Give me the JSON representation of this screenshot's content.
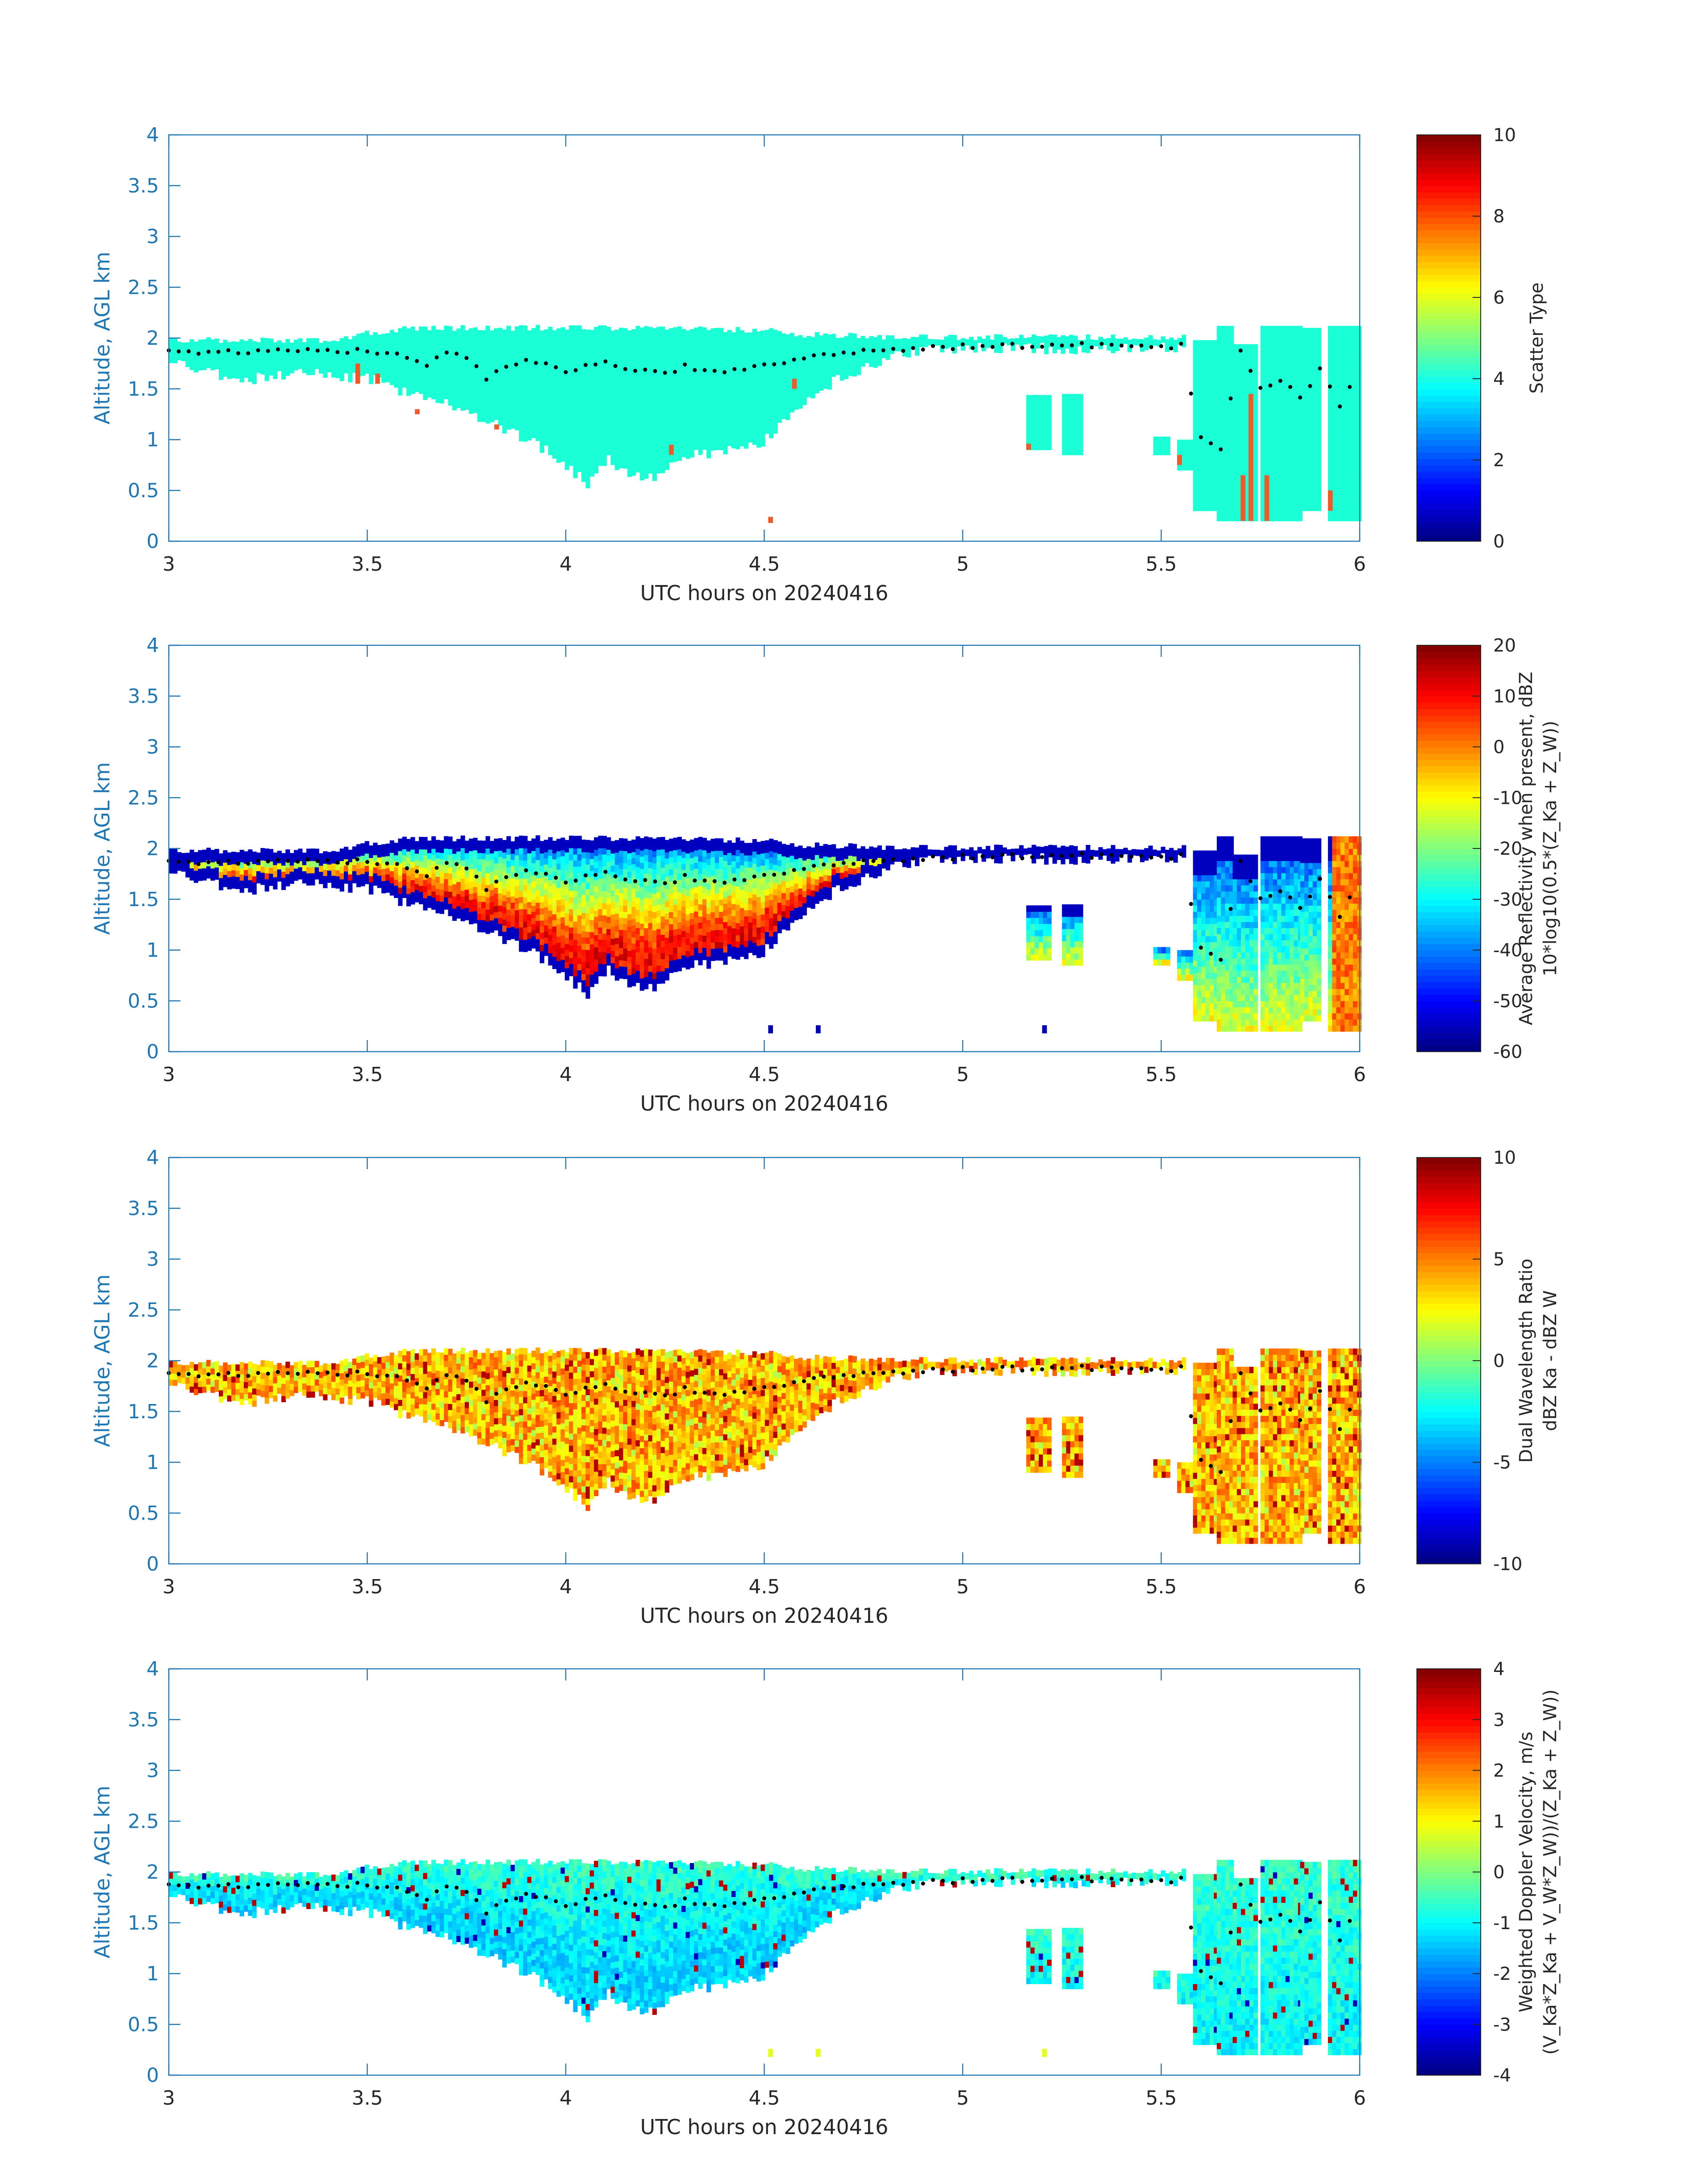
{
  "colors": {
    "axis": "#1f77b4",
    "text": "#262626",
    "cloud_scatter": "#1affd5",
    "scatter_red": "#f05a28",
    "dots": "#000000"
  },
  "chart_data": [
    {
      "type": "heatmap",
      "panel": "scatter",
      "xlabel": "UTC hours on 20240416",
      "ylabel": "Altitude, AGL km",
      "xlim": [
        3,
        6
      ],
      "ylim": [
        0,
        4
      ],
      "xticks": [
        "3",
        "3.5",
        "4",
        "4.5",
        "5",
        "5.5",
        "6"
      ],
      "yticks": [
        "0",
        "0.5",
        "1",
        "1.5",
        "2",
        "2.5",
        "3",
        "3.5",
        "4"
      ],
      "colorbar": {
        "label": "Scatter Type",
        "label2": "",
        "ticks": [
          "0",
          "2",
          "4",
          "6",
          "8",
          "10"
        ],
        "range": [
          0,
          10
        ]
      }
    },
    {
      "type": "heatmap",
      "panel": "reflectivity",
      "xlabel": "UTC hours on 20240416",
      "ylabel": "Altitude, AGL km",
      "xlim": [
        3,
        6
      ],
      "ylim": [
        0,
        4
      ],
      "xticks": [
        "3",
        "3.5",
        "4",
        "4.5",
        "5",
        "5.5",
        "6"
      ],
      "yticks": [
        "0",
        "0.5",
        "1",
        "1.5",
        "2",
        "2.5",
        "3",
        "3.5",
        "4"
      ],
      "colorbar": {
        "label": "Average Reflectivity when present, dBZ",
        "label2": "10*log10(0.5*(Z_Ka + Z_W))",
        "ticks": [
          "-60",
          "-50",
          "-40",
          "-30",
          "-20",
          "-10",
          "0",
          "10",
          "20"
        ],
        "range": [
          -60,
          20
        ]
      }
    },
    {
      "type": "heatmap",
      "panel": "dwr",
      "xlabel": "UTC hours on 20240416",
      "ylabel": "Altitude, AGL km",
      "xlim": [
        3,
        6
      ],
      "ylim": [
        0,
        4
      ],
      "xticks": [
        "3",
        "3.5",
        "4",
        "4.5",
        "5",
        "5.5",
        "6"
      ],
      "yticks": [
        "0",
        "0.5",
        "1",
        "1.5",
        "2",
        "2.5",
        "3",
        "3.5",
        "4"
      ],
      "colorbar": {
        "label": "Dual Wavelength Ratio",
        "label2": "dBZ Ka - dBZ W",
        "ticks": [
          "-10",
          "-5",
          "0",
          "5",
          "10"
        ],
        "range": [
          -10,
          10
        ]
      }
    },
    {
      "type": "heatmap",
      "panel": "velocity",
      "xlabel": "UTC hours on 20240416",
      "ylabel": "Altitude, AGL km",
      "xlim": [
        3,
        6
      ],
      "ylim": [
        0,
        4
      ],
      "xticks": [
        "3",
        "3.5",
        "4",
        "4.5",
        "5",
        "5.5",
        "6"
      ],
      "yticks": [
        "0",
        "0.5",
        "1",
        "1.5",
        "2",
        "2.5",
        "3",
        "3.5",
        "4"
      ],
      "colorbar": {
        "label": "Weighted Doppler Velocity, m/s",
        "label2": "(V_Ka*Z_Ka + V_W*Z_W))/(Z_Ka + Z_W))",
        "ticks": [
          "-4",
          "-3",
          "-2",
          "-1",
          "0",
          "1",
          "2",
          "3",
          "4"
        ],
        "range": [
          -4,
          4
        ]
      }
    }
  ],
  "cloud_profile": {
    "x": [
      3.0,
      3.1,
      3.2,
      3.3,
      3.4,
      3.5,
      3.6,
      3.7,
      3.8,
      3.9,
      4.0,
      4.05,
      4.1,
      4.2,
      4.3,
      4.4,
      4.5,
      4.6,
      4.7,
      4.8,
      4.9,
      5.0,
      5.1,
      5.2,
      5.3,
      5.4,
      5.5,
      5.55
    ],
    "top": [
      1.95,
      1.95,
      1.95,
      1.95,
      1.95,
      2.02,
      2.07,
      2.07,
      2.07,
      2.07,
      2.07,
      2.07,
      2.07,
      2.07,
      2.07,
      2.05,
      2.05,
      2.0,
      2.0,
      1.98,
      1.98,
      1.98,
      1.98,
      1.98,
      1.98,
      1.98,
      1.98,
      1.98
    ],
    "bottom": [
      1.8,
      1.65,
      1.6,
      1.65,
      1.65,
      1.6,
      1.45,
      1.35,
      1.2,
      1.0,
      0.75,
      0.55,
      0.8,
      0.6,
      0.85,
      0.9,
      1.0,
      1.4,
      1.65,
      1.8,
      1.9,
      1.9,
      1.9,
      1.9,
      1.9,
      1.9,
      1.9,
      1.9
    ]
  },
  "base_dots": {
    "x": [
      3.0,
      3.1,
      3.2,
      3.3,
      3.4,
      3.5,
      3.55,
      3.6,
      3.65,
      3.7,
      3.75,
      3.8,
      3.85,
      3.9,
      3.95,
      4.0,
      4.05,
      4.1,
      4.15,
      4.2,
      4.25,
      4.3,
      4.35,
      4.4,
      4.45,
      4.5,
      4.55,
      4.6,
      4.7,
      4.8,
      4.9,
      5.0,
      5.1,
      5.2,
      5.3,
      5.4,
      5.5,
      5.55,
      5.6,
      5.65,
      5.7,
      5.75,
      5.8,
      5.85,
      5.9,
      5.95,
      6.0
    ],
    "y": [
      1.88,
      1.86,
      1.86,
      1.87,
      1.88,
      1.87,
      1.85,
      1.82,
      1.75,
      1.85,
      1.8,
      1.6,
      1.72,
      1.78,
      1.75,
      1.68,
      1.72,
      1.75,
      1.7,
      1.68,
      1.65,
      1.72,
      1.68,
      1.65,
      1.7,
      1.72,
      1.75,
      1.82,
      1.85,
      1.88,
      1.9,
      1.92,
      1.92,
      1.93,
      1.93,
      1.92,
      1.92,
      1.92,
      1.0,
      0.9,
      1.9,
      1.5,
      1.6,
      1.4,
      1.7,
      1.35,
      1.65
    ]
  },
  "features": {
    "scatter_red_cells": [
      [
        3.47,
        1.55,
        1.75
      ],
      [
        3.52,
        1.55,
        1.65
      ],
      [
        3.62,
        1.25,
        1.3
      ],
      [
        3.82,
        1.1,
        1.15
      ],
      [
        4.26,
        0.85,
        0.95
      ],
      [
        4.51,
        0.18,
        0.24
      ],
      [
        4.57,
        1.5,
        1.6
      ],
      [
        5.16,
        0.9,
        0.96
      ],
      [
        5.54,
        0.75,
        0.85
      ],
      [
        5.7,
        0.2,
        0.65
      ],
      [
        5.72,
        0.2,
        1.45
      ],
      [
        5.76,
        0.2,
        0.65
      ],
      [
        5.92,
        0.3,
        0.5
      ]
    ],
    "isolated_cells": [
      [
        4.51,
        0.18,
        0.26
      ],
      [
        4.63,
        0.18,
        0.26
      ],
      [
        5.2,
        0.18,
        0.26
      ]
    ],
    "cloud_patches": [
      [
        5.16,
        5.22,
        0.9,
        1.4
      ],
      [
        5.25,
        5.3,
        0.85,
        1.4
      ],
      [
        5.48,
        5.52,
        0.85,
        1.0
      ],
      [
        5.54,
        5.6,
        0.7,
        1.0
      ],
      [
        5.58,
        5.64,
        0.3,
        1.95
      ],
      [
        5.64,
        5.68,
        0.2,
        2.08
      ],
      [
        5.68,
        5.74,
        0.2,
        1.9
      ],
      [
        5.75,
        5.85,
        0.2,
        2.08
      ],
      [
        5.85,
        5.9,
        0.3,
        2.08
      ],
      [
        5.92,
        6.0,
        0.2,
        2.08
      ]
    ]
  }
}
